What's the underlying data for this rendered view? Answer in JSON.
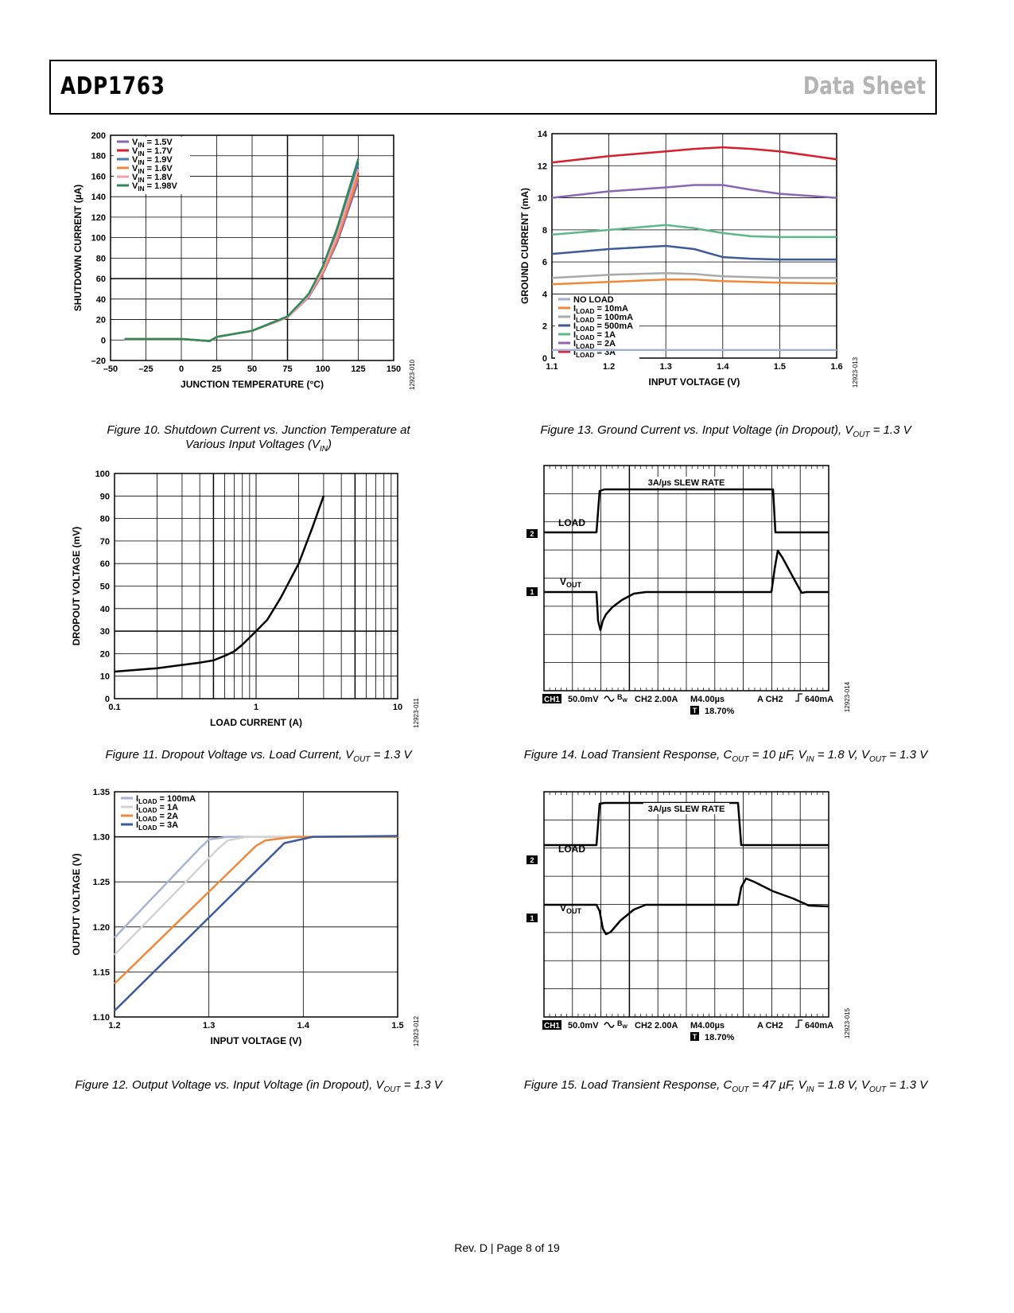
{
  "header": {
    "part": "ADP1763",
    "doc_type": "Data Sheet"
  },
  "figures": {
    "fig10": {
      "caption": "Figure 10. Shutdown Current vs. Junction Temperature at Various Input Voltages (VIN)",
      "code": "12923-010",
      "chart_data": {
        "type": "line",
        "title": "",
        "xlabel": "JUNCTION TEMPERATURE (°C)",
        "ylabel": "SHUTDOWN CURRENT (µA)",
        "xlim": [
          -50,
          150
        ],
        "ylim": [
          -20,
          200
        ],
        "xticks": [
          "–50",
          "–25",
          "0",
          "25",
          "50",
          "75",
          "100",
          "125",
          "150"
        ],
        "yticks": [
          "–20",
          "0",
          "20",
          "40",
          "60",
          "80",
          "100",
          "120",
          "140",
          "160",
          "180",
          "200"
        ],
        "x": [
          -40,
          -25,
          0,
          10,
          20,
          25,
          50,
          75,
          90,
          100,
          110,
          125
        ],
        "series": [
          {
            "name": "VIN = 1.5V",
            "color": "#8b64b6",
            "values": [
              1,
              1,
              1,
              0,
              -1,
              3,
              9,
              22,
              42,
              65,
              95,
              155
            ]
          },
          {
            "name": "VIN = 1.7V",
            "color": "#d81e2e",
            "values": [
              1,
              1,
              1,
              0,
              -1,
              3,
              9,
              22,
              43,
              67,
              100,
              163
            ]
          },
          {
            "name": "VIN = 1.9V",
            "color": "#4a7ebb",
            "values": [
              1,
              1,
              1,
              0,
              -1,
              3,
              9,
              23,
              44,
              70,
              106,
              172
            ]
          },
          {
            "name": "VIN = 1.6V",
            "color": "#f0883a",
            "values": [
              1,
              1,
              1,
              0,
              -1,
              3,
              9,
              22,
              43,
              66,
              98,
              160
            ]
          },
          {
            "name": "VIN = 1.8V",
            "color": "#f49ca8",
            "values": [
              1,
              1,
              1,
              0,
              -1,
              3,
              9,
              22,
              43,
              68,
              102,
              167
            ]
          },
          {
            "name": "VIN = 1.98V",
            "color": "#2e8b57",
            "values": [
              1,
              1,
              1,
              0,
              -1,
              3,
              9,
              23,
              45,
              72,
              109,
              177
            ]
          }
        ],
        "legend": [
          {
            "main": "V",
            "sub": "IN",
            "rest": " = 1.5V",
            "color": "#8b64b6"
          },
          {
            "main": "V",
            "sub": "IN",
            "rest": " = 1.7V",
            "color": "#d81e2e"
          },
          {
            "main": "V",
            "sub": "IN",
            "rest": " = 1.9V",
            "color": "#4a7ebb"
          },
          {
            "main": "V",
            "sub": "IN",
            "rest": " = 1.6V",
            "color": "#f0883a"
          },
          {
            "main": "V",
            "sub": "IN",
            "rest": " = 1.8V",
            "color": "#f49ca8"
          },
          {
            "main": "V",
            "sub": "IN",
            "rest": " = 1.98V",
            "color": "#2e8b57"
          }
        ]
      }
    },
    "fig11": {
      "caption": "Figure 11. Dropout Voltage vs. Load Current, VOUT = 1.3 V",
      "code": "12923-011",
      "chart_data": {
        "type": "line",
        "xscale": "log",
        "xlabel": "LOAD CURRENT (A)",
        "ylabel": "DROPOUT VOLTAGE (mV)",
        "xlim": [
          0.1,
          10
        ],
        "ylim": [
          0,
          100
        ],
        "xticks": [
          "0.1",
          "1",
          "10"
        ],
        "yticks": [
          "0",
          "10",
          "20",
          "30",
          "40",
          "50",
          "60",
          "70",
          "80",
          "90",
          "100"
        ],
        "x": [
          0.1,
          0.2,
          0.3,
          0.4,
          0.5,
          0.6,
          0.7,
          0.8,
          1.0,
          1.2,
          1.5,
          2.0,
          2.5,
          3.0
        ],
        "series": [
          {
            "name": "Dropout",
            "color": "#000000",
            "values": [
              12,
              13.5,
              15,
              16,
              17,
              19,
              21,
              24,
              30,
              35,
              45,
              60,
              76,
              90
            ]
          }
        ]
      }
    },
    "fig12": {
      "caption": "Figure 12. Output Voltage vs. Input Voltage (in Dropout), VOUT = 1.3 V",
      "code": "12923-012",
      "chart_data": {
        "type": "line",
        "xlabel": "INPUT VOLTAGE (V)",
        "ylabel": "OUTPUT VOLTAGE (V)",
        "xlim": [
          1.2,
          1.5
        ],
        "ylim": [
          1.1,
          1.35
        ],
        "xticks": [
          "1.2",
          "1.3",
          "1.4",
          "1.5"
        ],
        "yticks": [
          "1.10",
          "1.15",
          "1.20",
          "1.25",
          "1.30",
          "1.35"
        ],
        "series": [
          {
            "name": "ILOAD = 100mA",
            "color": "#a7b5d3",
            "x": [
              1.2,
              1.29,
              1.3,
              1.32,
              1.5
            ],
            "values": [
              1.188,
              1.287,
              1.297,
              1.3,
              1.3
            ]
          },
          {
            "name": "ILOAD = 1A",
            "color": "#d3d3d3",
            "x": [
              1.2,
              1.31,
              1.32,
              1.34,
              1.5
            ],
            "values": [
              1.169,
              1.287,
              1.296,
              1.3,
              1.3
            ]
          },
          {
            "name": "ILOAD = 2A",
            "color": "#f0883a",
            "x": [
              1.2,
              1.35,
              1.36,
              1.39,
              1.5
            ],
            "values": [
              1.137,
              1.29,
              1.296,
              1.3,
              1.3
            ]
          },
          {
            "name": "ILOAD = 3A",
            "color": "#3d5a99",
            "x": [
              1.2,
              1.35,
              1.38,
              1.41,
              1.5
            ],
            "values": [
              1.107,
              1.262,
              1.293,
              1.3,
              1.301
            ]
          }
        ],
        "legend": [
          {
            "main": "I",
            "sub": "LOAD",
            "rest": " = 100mA",
            "color": "#a7b5d3"
          },
          {
            "main": "I",
            "sub": "LOAD",
            "rest": " = 1A",
            "color": "#d3d3d3"
          },
          {
            "main": "I",
            "sub": "LOAD",
            "rest": " = 2A",
            "color": "#f0883a"
          },
          {
            "main": "I",
            "sub": "LOAD",
            "rest": " = 3A",
            "color": "#3d5a99"
          }
        ]
      }
    },
    "fig13": {
      "caption": "Figure 13. Ground Current vs. Input Voltage (in Dropout), VOUT = 1.3 V",
      "code": "12923-013",
      "chart_data": {
        "type": "line",
        "xlabel": "INPUT VOLTAGE (V)",
        "ylabel": "GROUND CURRENT (mA)",
        "xlim": [
          1.1,
          1.6
        ],
        "ylim": [
          0,
          14
        ],
        "xticks": [
          "1.1",
          "1.2",
          "1.3",
          "1.4",
          "1.5",
          "1.6"
        ],
        "yticks": [
          "0",
          "2",
          "4",
          "6",
          "8",
          "10",
          "12",
          "14"
        ],
        "x": [
          1.1,
          1.2,
          1.3,
          1.35,
          1.4,
          1.45,
          1.5,
          1.6
        ],
        "series": [
          {
            "name": "NO LOAD",
            "color": "#9fb2d4",
            "values": [
              0.5,
              0.5,
              0.5,
              0.5,
              0.5,
              0.5,
              0.5,
              0.5
            ]
          },
          {
            "name": "ILOAD = 10mA",
            "color": "#f0883a",
            "values": [
              4.6,
              4.75,
              4.9,
              4.9,
              4.8,
              4.75,
              4.7,
              4.65
            ]
          },
          {
            "name": "ILOAD = 100mA",
            "color": "#a9a9a9",
            "values": [
              5.0,
              5.2,
              5.3,
              5.25,
              5.1,
              5.05,
              5.0,
              5.0
            ]
          },
          {
            "name": "ILOAD = 500mA",
            "color": "#3d5a99",
            "values": [
              6.5,
              6.8,
              7.0,
              6.8,
              6.3,
              6.2,
              6.15,
              6.15
            ]
          },
          {
            "name": "ILOAD = 1A",
            "color": "#5cb889",
            "values": [
              7.7,
              8.0,
              8.3,
              8.1,
              7.8,
              7.6,
              7.55,
              7.55
            ]
          },
          {
            "name": "ILOAD = 2A",
            "color": "#8b64b6",
            "values": [
              10.0,
              10.4,
              10.65,
              10.8,
              10.8,
              10.5,
              10.25,
              10.0
            ]
          },
          {
            "name": "ILOAD = 3A",
            "color": "#d81e2e",
            "values": [
              12.2,
              12.6,
              12.9,
              13.05,
              13.15,
              13.05,
              12.9,
              12.4
            ]
          }
        ],
        "legend": [
          {
            "main": "NO LOAD",
            "sub": "",
            "rest": "",
            "color": "#9fb2d4"
          },
          {
            "main": "I",
            "sub": "LOAD",
            "rest": " = 10mA",
            "color": "#f0883a"
          },
          {
            "main": "I",
            "sub": "LOAD",
            "rest": " = 100mA",
            "color": "#a9a9a9"
          },
          {
            "main": "I",
            "sub": "LOAD",
            "rest": " = 500mA",
            "color": "#3d5a99"
          },
          {
            "main": "I",
            "sub": "LOAD",
            "rest": " = 1A",
            "color": "#5cb889"
          },
          {
            "main": "I",
            "sub": "LOAD",
            "rest": " = 2A",
            "color": "#8b64b6"
          },
          {
            "main": "I",
            "sub": "LOAD",
            "rest": " = 3A",
            "color": "#d81e2e"
          }
        ]
      }
    },
    "fig14": {
      "caption": "Figure 14. Load Transient Response, COUT = 10 µF, VIN = 1.8 V, VOUT = 1.3 V",
      "code": "12923-014",
      "scope": {
        "slew_label": "3A/µs SLEW RATE",
        "load_label": "LOAD",
        "vout_label": "V",
        "vout_sub": "OUT",
        "marker_ch2": "2",
        "marker_ch1": "1",
        "ch1_badge": "CH1",
        "ch1_scale": "50.0mV",
        "bw": "B",
        "bw_sub": "W",
        "ch2_scale": "CH2 2.00A",
        "timebase": "M4.00µs",
        "trigger": "A  CH2",
        "trigger_level": "640mA",
        "t_badge": "T",
        "t_pos": "18.70%"
      }
    },
    "fig15": {
      "caption": "Figure 15. Load Transient Response, COUT = 47 µF, VIN = 1.8 V, VOUT = 1.3 V",
      "code": "12923-015",
      "scope": {
        "slew_label": "3A/µs SLEW RATE",
        "load_label": "LOAD",
        "vout_label": "V",
        "vout_sub": "OUT",
        "marker_ch2": "2",
        "marker_ch1": "1",
        "ch1_badge": "CH1",
        "ch1_scale": "50.0mV",
        "bw": "B",
        "bw_sub": "W",
        "ch2_scale": "CH2 2.00A",
        "timebase": "M4.00µs",
        "trigger": "A  CH2",
        "trigger_level": "640mA",
        "t_badge": "T",
        "t_pos": "18.70%"
      }
    }
  },
  "footer": "Rev. D | Page 8 of 19"
}
